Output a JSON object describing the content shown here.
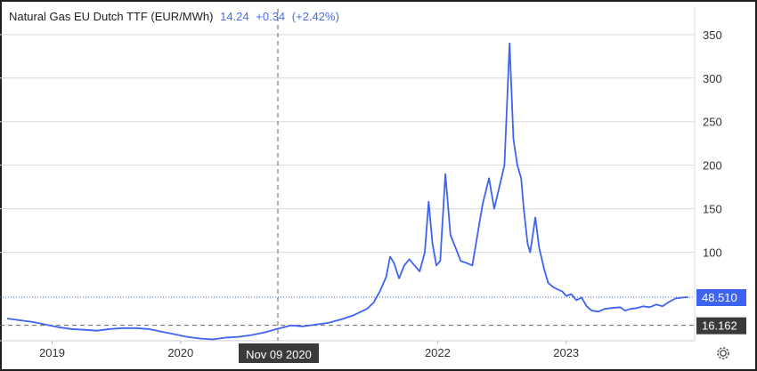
{
  "header": {
    "title": "Natural Gas EU Dutch TTF (EUR/MWh)",
    "price": "14.24",
    "change": "+0.34",
    "change_pct": "(+2.42%)"
  },
  "crosshair": {
    "date_label": "Nov 09 2020",
    "price_label": "16.162",
    "price_value": 16.162
  },
  "last_price": {
    "label": "48.510",
    "value": 48.51
  },
  "colors": {
    "line": "#3d63f0",
    "last_price_badge": "#3d63f0",
    "crosshair_badge": "#3a3a3a",
    "grid": "#d9d9d9"
  },
  "icons": {
    "settings": "gear-icon"
  },
  "chart_data": {
    "type": "line",
    "title": "Natural Gas EU Dutch TTF (EUR/MWh)",
    "xlabel": "",
    "ylabel": "",
    "ylim": [
      0,
      370
    ],
    "xlim": [
      2018.65,
      2024.0
    ],
    "x_ticks": [
      {
        "label": "2019",
        "value": 2019
      },
      {
        "label": "2020",
        "value": 2020
      },
      {
        "label": "2022",
        "value": 2022
      },
      {
        "label": "2023",
        "value": 2023
      }
    ],
    "y_ticks": [
      {
        "label": "100",
        "value": 100
      },
      {
        "label": "150",
        "value": 150
      },
      {
        "label": "200",
        "value": 200
      },
      {
        "label": "250",
        "value": 250
      },
      {
        "label": "300",
        "value": 300
      },
      {
        "label": "350",
        "value": 350
      }
    ],
    "grid": true,
    "series": [
      {
        "x": [
          2018.65,
          2018.75,
          2018.85,
          2018.95,
          2019.05,
          2019.15,
          2019.25,
          2019.35,
          2019.45,
          2019.55,
          2019.65,
          2019.75,
          2019.85,
          2019.95,
          2020.05,
          2020.15,
          2020.25,
          2020.35,
          2020.45,
          2020.55,
          2020.65,
          2020.75,
          2020.86,
          2020.95,
          2021.05,
          2021.15,
          2021.25,
          2021.35,
          2021.45,
          2021.5,
          2021.55,
          2021.6,
          2021.63,
          2021.66,
          2021.7,
          2021.74,
          2021.78,
          2021.82,
          2021.86,
          2021.9,
          2021.93,
          2021.96,
          2021.99,
          2022.02,
          2022.06,
          2022.1,
          2022.14,
          2022.18,
          2022.22,
          2022.27,
          2022.31,
          2022.35,
          2022.4,
          2022.44,
          2022.48,
          2022.52,
          2022.56,
          2022.59,
          2022.62,
          2022.65,
          2022.67,
          2022.7,
          2022.72,
          2022.74,
          2022.76,
          2022.79,
          2022.83,
          2022.86,
          2022.9,
          2022.94,
          2022.97,
          2023.0,
          2023.04,
          2023.08,
          2023.12,
          2023.16,
          2023.2,
          2023.25,
          2023.3,
          2023.35,
          2023.42,
          2023.46,
          2023.5,
          2023.55,
          2023.6,
          2023.65,
          2023.7,
          2023.75,
          2023.8,
          2023.85,
          2023.9,
          2023.95
        ],
        "values": [
          24,
          22,
          20,
          17,
          14,
          12,
          11,
          10,
          12,
          13,
          13,
          12,
          9,
          6,
          3,
          1,
          0,
          2,
          3,
          5,
          8,
          12,
          16,
          15,
          17,
          19,
          23,
          28,
          35,
          42,
          55,
          72,
          95,
          88,
          70,
          85,
          92,
          85,
          78,
          100,
          158,
          110,
          85,
          90,
          190,
          120,
          105,
          90,
          88,
          85,
          120,
          155,
          185,
          150,
          175,
          200,
          340,
          230,
          200,
          185,
          150,
          110,
          100,
          120,
          140,
          105,
          80,
          65,
          60,
          57,
          55,
          50,
          52,
          45,
          48,
          38,
          33,
          32,
          35,
          36,
          37,
          33,
          35,
          36,
          38,
          37,
          40,
          38,
          43,
          47,
          48,
          48.51
        ]
      }
    ]
  }
}
